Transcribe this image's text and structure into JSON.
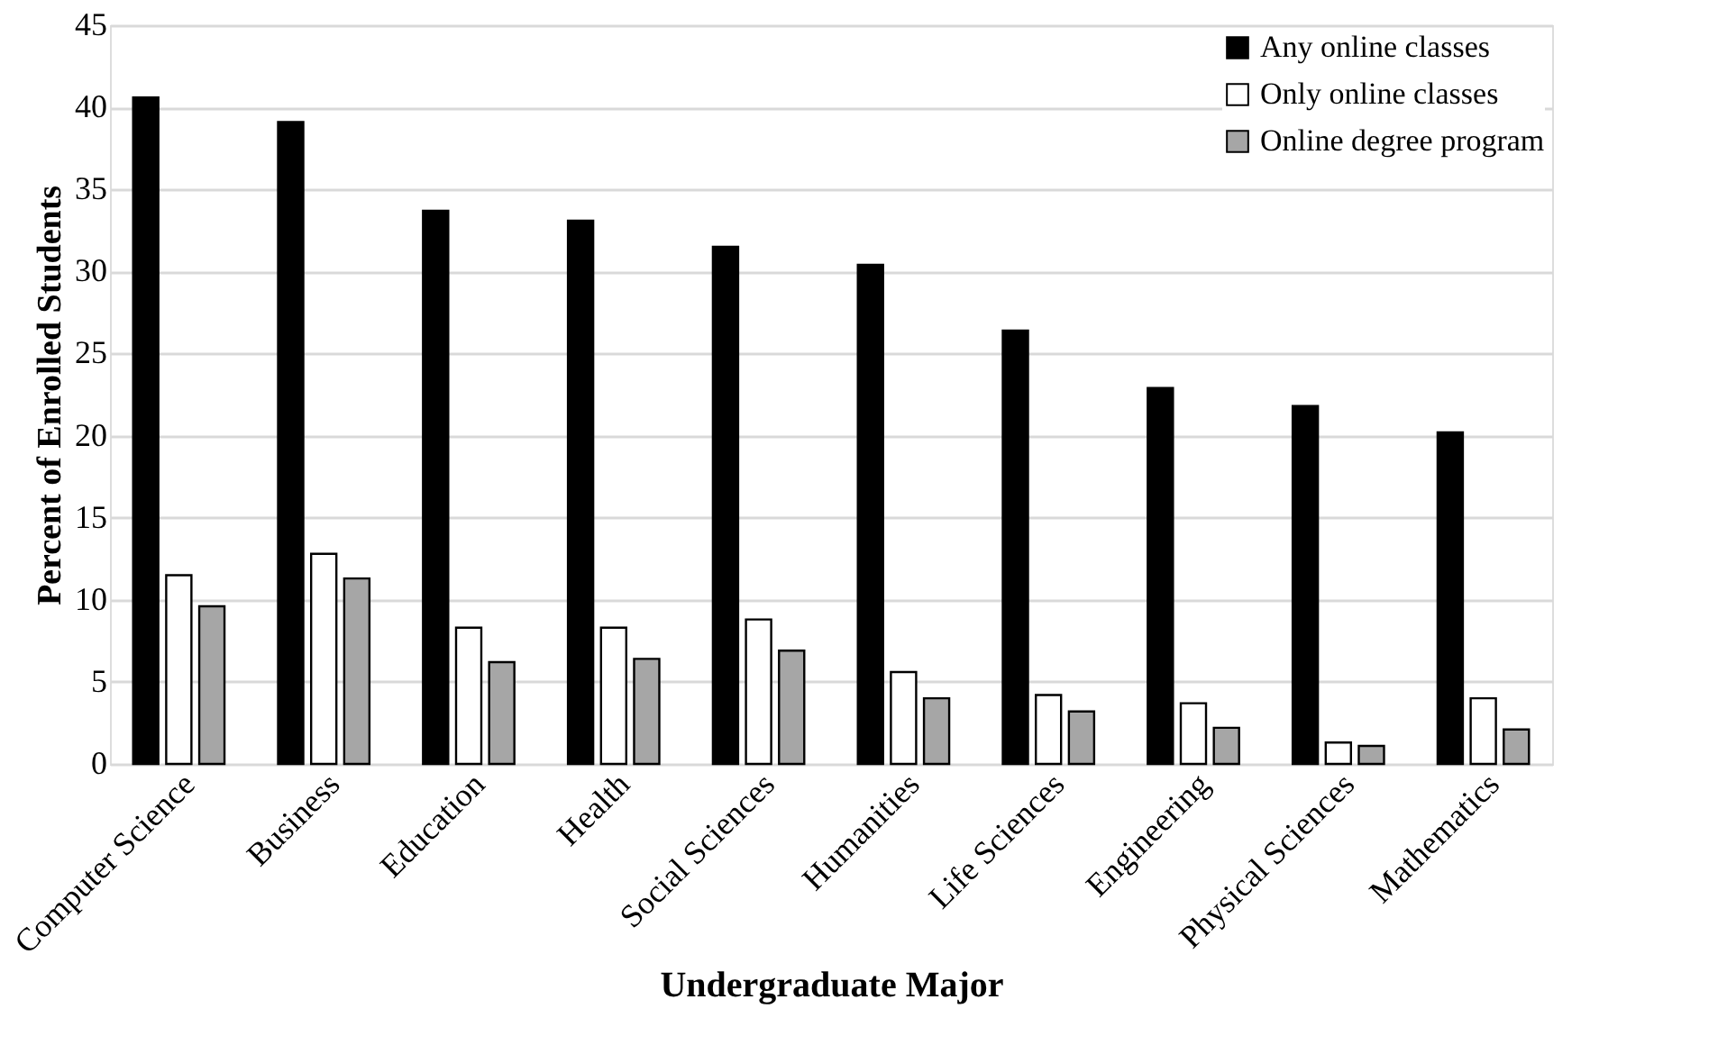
{
  "chart_data": {
    "type": "bar",
    "xlabel": "Undergraduate Major",
    "ylabel": "Percent of Enrolled Students",
    "categories": [
      "Computer Science",
      "Business",
      "Education",
      "Health",
      "Social Sciences",
      "Humanities",
      "Life Sciences",
      "Engineering",
      "Physical Sciences",
      "Mathematics"
    ],
    "series": [
      {
        "name": "Any online classes",
        "color": "#000000",
        "values": [
          40.6,
          39.1,
          33.7,
          33.1,
          31.5,
          30.4,
          26.4,
          22.9,
          21.8,
          20.2
        ]
      },
      {
        "name": "Only online classes",
        "color": "#ffffff",
        "values": [
          11.5,
          12.8,
          8.3,
          8.3,
          8.8,
          5.6,
          4.2,
          3.7,
          1.3,
          4.0
        ]
      },
      {
        "name": "Online degree program",
        "color": "#a6a6a6",
        "values": [
          9.6,
          11.3,
          6.2,
          6.4,
          6.9,
          4.0,
          3.2,
          2.2,
          1.1,
          2.1
        ]
      }
    ],
    "ylim": [
      0,
      45
    ],
    "yticks": [
      0,
      5,
      10,
      15,
      20,
      25,
      30,
      35,
      40,
      45
    ],
    "grid": "y",
    "legend": "top right"
  }
}
